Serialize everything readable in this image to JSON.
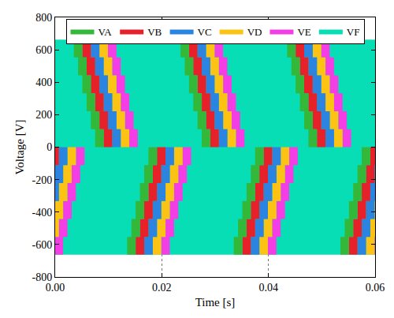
{
  "chart_data": {
    "type": "band",
    "x_label": "Time [s]",
    "y_label": "Voltage [V]",
    "xlim": [
      0,
      0.06
    ],
    "xticks": [
      {
        "value": 0,
        "label": "0.00"
      },
      0.02,
      0.04,
      0.06
    ],
    "ylim": [
      -800,
      800
    ],
    "yticks": [
      -800,
      -600,
      -400,
      -200,
      0,
      200,
      400,
      600,
      800
    ],
    "grid": "x",
    "legend": "top",
    "series": [
      {
        "name": "VA",
        "color": "#33b83a",
        "blocks": [
          [
            0.0035,
            0.0051,
            553,
            663
          ],
          [
            0.0043,
            0.0059,
            442,
            553
          ],
          [
            0.0051,
            0.0067,
            332,
            442
          ],
          [
            0.0059,
            0.0075,
            221,
            332
          ],
          [
            0.0067,
            0.0083,
            111,
            221
          ],
          [
            0.0075,
            0.0091,
            0,
            111
          ],
          [
            0.0235,
            0.0251,
            553,
            663
          ],
          [
            0.0243,
            0.0259,
            442,
            553
          ],
          [
            0.0251,
            0.0267,
            332,
            442
          ],
          [
            0.0259,
            0.0275,
            221,
            332
          ],
          [
            0.0267,
            0.0283,
            111,
            221
          ],
          [
            0.0275,
            0.0291,
            0,
            111
          ],
          [
            0.0435,
            0.0451,
            553,
            663
          ],
          [
            0.0443,
            0.0459,
            442,
            553
          ],
          [
            0.0451,
            0.0467,
            332,
            442
          ],
          [
            0.0459,
            0.0475,
            221,
            332
          ],
          [
            0.0467,
            0.0483,
            111,
            221
          ],
          [
            0.0475,
            0.0491,
            0,
            111
          ],
          [
            0.0135,
            0.0151,
            -663,
            -553
          ],
          [
            0.0143,
            0.0159,
            -553,
            -442
          ],
          [
            0.0151,
            0.0167,
            -442,
            -332
          ],
          [
            0.0159,
            0.0175,
            -332,
            -221
          ],
          [
            0.0167,
            0.0183,
            -221,
            -111
          ],
          [
            0.0175,
            0.0191,
            -111,
            0
          ],
          [
            0.0335,
            0.0351,
            -663,
            -553
          ],
          [
            0.0343,
            0.0359,
            -553,
            -442
          ],
          [
            0.0351,
            0.0367,
            -442,
            -332
          ],
          [
            0.0359,
            0.0375,
            -332,
            -221
          ],
          [
            0.0367,
            0.0383,
            -221,
            -111
          ],
          [
            0.0375,
            0.0391,
            -111,
            0
          ],
          [
            0.0535,
            0.0551,
            -663,
            -553
          ],
          [
            0.0543,
            0.0559,
            -553,
            -442
          ],
          [
            0.0551,
            0.0567,
            -442,
            -332
          ],
          [
            0.0559,
            0.0575,
            -332,
            -221
          ],
          [
            0.0567,
            0.0583,
            -221,
            -111
          ],
          [
            0.0575,
            0.0591,
            -111,
            0
          ]
        ]
      },
      {
        "name": "VB",
        "color": "#e6212a",
        "blocks": [
          [
            0.0051,
            0.0067,
            553,
            663
          ],
          [
            0.0059,
            0.0075,
            442,
            553
          ],
          [
            0.0067,
            0.0083,
            332,
            442
          ],
          [
            0.0075,
            0.0091,
            221,
            332
          ],
          [
            0.0083,
            0.0099,
            111,
            221
          ],
          [
            0.0091,
            0.0107,
            0,
            111
          ],
          [
            0.0251,
            0.0267,
            553,
            663
          ],
          [
            0.0259,
            0.0275,
            442,
            553
          ],
          [
            0.0267,
            0.0283,
            332,
            442
          ],
          [
            0.0275,
            0.0291,
            221,
            332
          ],
          [
            0.0283,
            0.0299,
            111,
            221
          ],
          [
            0.0291,
            0.0307,
            0,
            111
          ],
          [
            0.0451,
            0.0467,
            553,
            663
          ],
          [
            0.0459,
            0.0475,
            442,
            553
          ],
          [
            0.0467,
            0.0483,
            332,
            442
          ],
          [
            0.0475,
            0.0491,
            221,
            332
          ],
          [
            0.0483,
            0.0499,
            111,
            221
          ],
          [
            0.0491,
            0.0507,
            0,
            111
          ],
          [
            -0.0009,
            0.0007,
            -111,
            0
          ],
          [
            0.0151,
            0.0167,
            -663,
            -553
          ],
          [
            0.0159,
            0.0175,
            -553,
            -442
          ],
          [
            0.0167,
            0.0183,
            -442,
            -332
          ],
          [
            0.0175,
            0.0191,
            -332,
            -221
          ],
          [
            0.0183,
            0.0199,
            -221,
            -111
          ],
          [
            0.0191,
            0.0207,
            -111,
            0
          ],
          [
            0.0351,
            0.0367,
            -663,
            -553
          ],
          [
            0.0359,
            0.0375,
            -553,
            -442
          ],
          [
            0.0367,
            0.0383,
            -442,
            -332
          ],
          [
            0.0375,
            0.0391,
            -332,
            -221
          ],
          [
            0.0383,
            0.0399,
            -221,
            -111
          ],
          [
            0.0391,
            0.0407,
            -111,
            0
          ],
          [
            0.0551,
            0.0567,
            -663,
            -553
          ],
          [
            0.0559,
            0.0575,
            -553,
            -442
          ],
          [
            0.0567,
            0.0583,
            -442,
            -332
          ],
          [
            0.0575,
            0.0591,
            -332,
            -221
          ],
          [
            0.0583,
            0.0599,
            -221,
            -111
          ],
          [
            0.0591,
            0.0607,
            -111,
            0
          ]
        ]
      },
      {
        "name": "VC",
        "color": "#2a84e0",
        "blocks": [
          [
            0.0067,
            0.0083,
            553,
            663
          ],
          [
            0.0075,
            0.0091,
            442,
            553
          ],
          [
            0.0083,
            0.0099,
            332,
            442
          ],
          [
            0.0091,
            0.0107,
            221,
            332
          ],
          [
            0.0099,
            0.0115,
            111,
            221
          ],
          [
            0.0107,
            0.0123,
            0,
            111
          ],
          [
            0.0267,
            0.0283,
            553,
            663
          ],
          [
            0.0275,
            0.0291,
            442,
            553
          ],
          [
            0.0283,
            0.0299,
            332,
            442
          ],
          [
            0.0291,
            0.0307,
            221,
            332
          ],
          [
            0.0299,
            0.0315,
            111,
            221
          ],
          [
            0.0307,
            0.0323,
            0,
            111
          ],
          [
            0.0467,
            0.0483,
            553,
            663
          ],
          [
            0.0475,
            0.0491,
            442,
            553
          ],
          [
            0.0483,
            0.0499,
            332,
            442
          ],
          [
            0.0491,
            0.0507,
            221,
            332
          ],
          [
            0.0499,
            0.0515,
            111,
            221
          ],
          [
            0.0507,
            0.0523,
            0,
            111
          ],
          [
            -0.0009,
            0.0007,
            -332,
            -221
          ],
          [
            -0.0001,
            0.0015,
            -221,
            -111
          ],
          [
            0.0007,
            0.0023,
            -111,
            0
          ],
          [
            0.0167,
            0.0183,
            -663,
            -553
          ],
          [
            0.0175,
            0.0191,
            -553,
            -442
          ],
          [
            0.0183,
            0.0199,
            -442,
            -332
          ],
          [
            0.0191,
            0.0207,
            -332,
            -221
          ],
          [
            0.0199,
            0.0215,
            -221,
            -111
          ],
          [
            0.0207,
            0.0223,
            -111,
            0
          ],
          [
            0.0367,
            0.0383,
            -663,
            -553
          ],
          [
            0.0375,
            0.0391,
            -553,
            -442
          ],
          [
            0.0383,
            0.0399,
            -442,
            -332
          ],
          [
            0.0391,
            0.0407,
            -332,
            -221
          ],
          [
            0.0399,
            0.0415,
            -221,
            -111
          ],
          [
            0.0407,
            0.0423,
            -111,
            0
          ],
          [
            0.0567,
            0.0583,
            -663,
            -553
          ],
          [
            0.0575,
            0.0591,
            -553,
            -442
          ],
          [
            0.0583,
            0.0599,
            -442,
            -332
          ],
          [
            0.0591,
            0.0607,
            -332,
            -221
          ],
          [
            0.0599,
            0.0615,
            -221,
            -111
          ]
        ]
      },
      {
        "name": "VD",
        "color": "#fcc314",
        "blocks": [
          [
            0.0083,
            0.0099,
            553,
            663
          ],
          [
            0.0091,
            0.0107,
            442,
            553
          ],
          [
            0.0099,
            0.0115,
            332,
            442
          ],
          [
            0.0107,
            0.0123,
            221,
            332
          ],
          [
            0.0115,
            0.0131,
            111,
            221
          ],
          [
            0.0123,
            0.0139,
            0,
            111
          ],
          [
            0.0283,
            0.0299,
            553,
            663
          ],
          [
            0.0291,
            0.0307,
            442,
            553
          ],
          [
            0.0299,
            0.0315,
            332,
            442
          ],
          [
            0.0307,
            0.0323,
            221,
            332
          ],
          [
            0.0315,
            0.0331,
            111,
            221
          ],
          [
            0.0323,
            0.0339,
            0,
            111
          ],
          [
            0.0483,
            0.0499,
            553,
            663
          ],
          [
            0.0491,
            0.0507,
            442,
            553
          ],
          [
            0.0499,
            0.0515,
            332,
            442
          ],
          [
            0.0507,
            0.0523,
            221,
            332
          ],
          [
            0.0515,
            0.0531,
            111,
            221
          ],
          [
            0.0523,
            0.0539,
            0,
            111
          ],
          [
            -0.0009,
            0.0007,
            -553,
            -442
          ],
          [
            -0.0001,
            0.0015,
            -442,
            -332
          ],
          [
            0.0007,
            0.0023,
            -332,
            -221
          ],
          [
            0.0015,
            0.0031,
            -221,
            -111
          ],
          [
            0.0023,
            0.0039,
            -111,
            0
          ],
          [
            0.0183,
            0.0199,
            -663,
            -553
          ],
          [
            0.0191,
            0.0207,
            -553,
            -442
          ],
          [
            0.0199,
            0.0215,
            -442,
            -332
          ],
          [
            0.0207,
            0.0223,
            -332,
            -221
          ],
          [
            0.0215,
            0.0231,
            -221,
            -111
          ],
          [
            0.0223,
            0.0239,
            -111,
            0
          ],
          [
            0.0383,
            0.0399,
            -663,
            -553
          ],
          [
            0.0391,
            0.0407,
            -553,
            -442
          ],
          [
            0.0399,
            0.0415,
            -442,
            -332
          ],
          [
            0.0407,
            0.0423,
            -332,
            -221
          ],
          [
            0.0415,
            0.0431,
            -221,
            -111
          ],
          [
            0.0423,
            0.0439,
            -111,
            0
          ],
          [
            0.0583,
            0.0599,
            -663,
            -553
          ],
          [
            0.0591,
            0.0607,
            -553,
            -442
          ],
          [
            0.0599,
            0.0615,
            -442,
            -332
          ]
        ]
      },
      {
        "name": "VE",
        "color": "#f23ee4",
        "blocks": [
          [
            0.0099,
            0.0115,
            553,
            663
          ],
          [
            0.0107,
            0.0123,
            442,
            553
          ],
          [
            0.0115,
            0.0131,
            332,
            442
          ],
          [
            0.0123,
            0.0139,
            221,
            332
          ],
          [
            0.0131,
            0.0147,
            111,
            221
          ],
          [
            0.0139,
            0.0155,
            0,
            111
          ],
          [
            0.0299,
            0.0315,
            553,
            663
          ],
          [
            0.0307,
            0.0323,
            442,
            553
          ],
          [
            0.0315,
            0.0331,
            332,
            442
          ],
          [
            0.0323,
            0.0339,
            221,
            332
          ],
          [
            0.0331,
            0.0347,
            111,
            221
          ],
          [
            0.0339,
            0.0355,
            0,
            111
          ],
          [
            0.0499,
            0.0515,
            553,
            663
          ],
          [
            0.0507,
            0.0523,
            442,
            553
          ],
          [
            0.0515,
            0.0531,
            332,
            442
          ],
          [
            0.0523,
            0.0539,
            221,
            332
          ],
          [
            0.0531,
            0.0547,
            111,
            221
          ],
          [
            0.0539,
            0.0555,
            0,
            111
          ],
          [
            -0.0001,
            0.0015,
            -663,
            -553
          ],
          [
            0.0007,
            0.0023,
            -553,
            -442
          ],
          [
            0.0015,
            0.0031,
            -442,
            -332
          ],
          [
            0.0023,
            0.0039,
            -332,
            -221
          ],
          [
            0.0031,
            0.0047,
            -221,
            -111
          ],
          [
            0.0039,
            0.0055,
            -111,
            0
          ],
          [
            0.0199,
            0.0215,
            -663,
            -553
          ],
          [
            0.0207,
            0.0223,
            -553,
            -442
          ],
          [
            0.0215,
            0.0231,
            -442,
            -332
          ],
          [
            0.0223,
            0.0239,
            -332,
            -221
          ],
          [
            0.0231,
            0.0247,
            -221,
            -111
          ],
          [
            0.0239,
            0.0255,
            -111,
            0
          ],
          [
            0.0399,
            0.0415,
            -663,
            -553
          ],
          [
            0.0407,
            0.0423,
            -553,
            -442
          ],
          [
            0.0415,
            0.0431,
            -442,
            -332
          ],
          [
            0.0423,
            0.0439,
            -332,
            -221
          ],
          [
            0.0431,
            0.0447,
            -221,
            -111
          ],
          [
            0.0439,
            0.0455,
            -111,
            0
          ],
          [
            0.0599,
            0.0615,
            -663,
            -553
          ]
        ]
      },
      {
        "name": "VF",
        "color": "#08deb6",
        "blocks": [
          [
            0,
            0.06,
            -663,
            663
          ]
        ]
      }
    ]
  }
}
